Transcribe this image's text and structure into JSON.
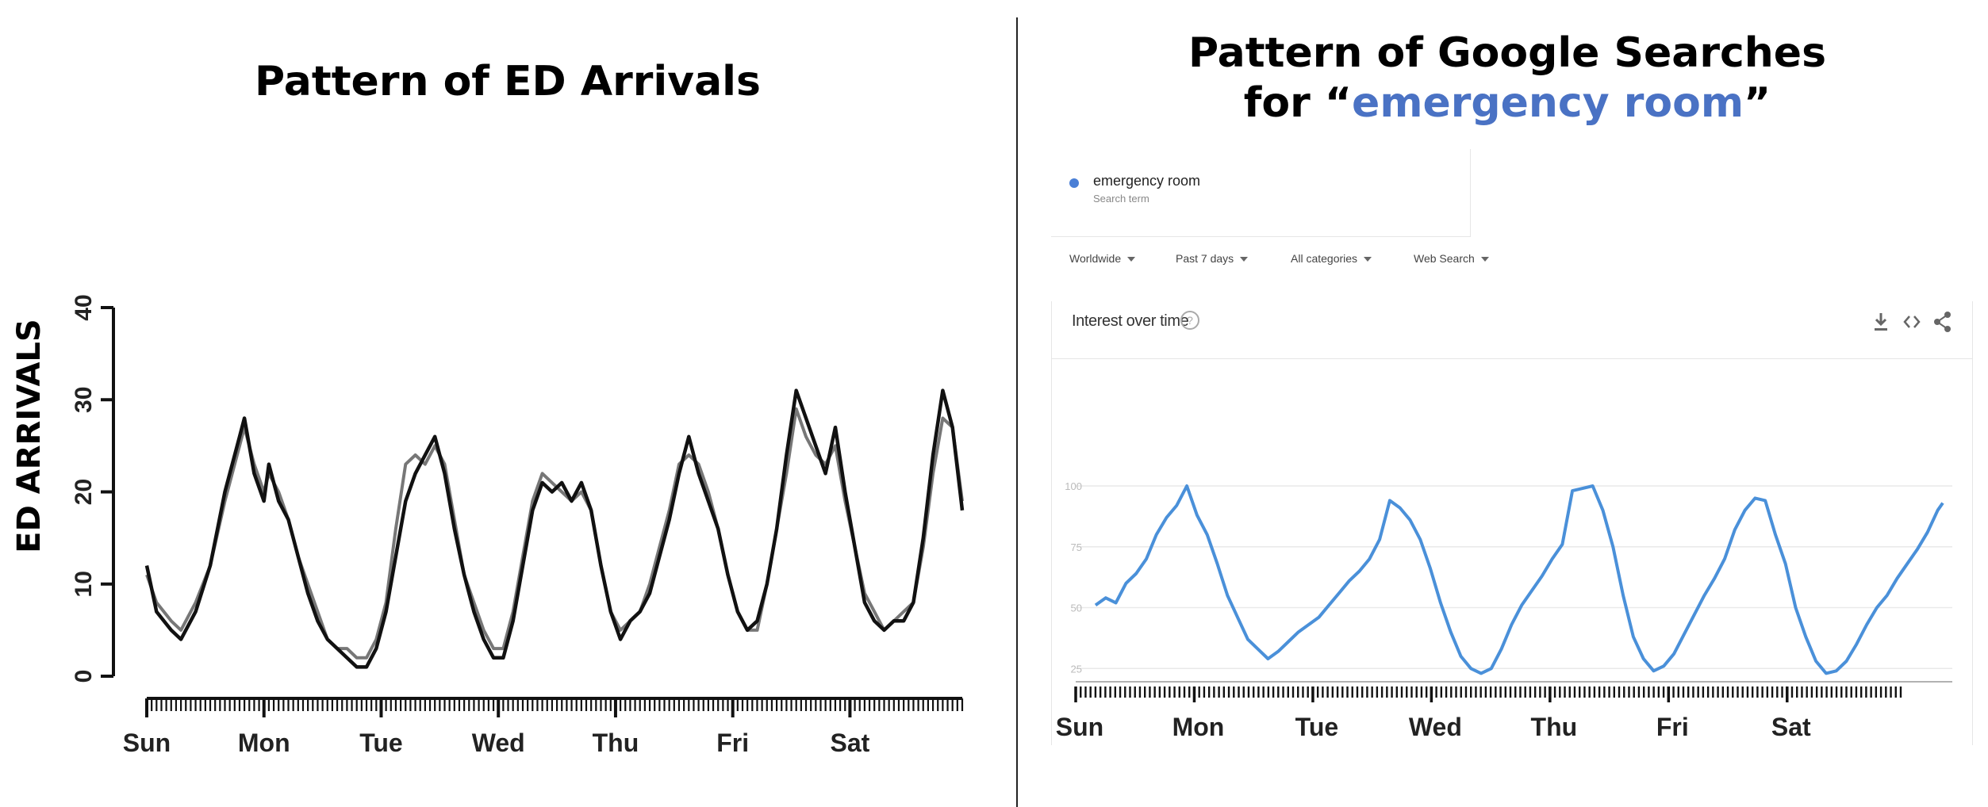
{
  "left_panel": {
    "title": "Pattern of ED Arrivals"
  },
  "right_panel": {
    "title_line1": "Pattern of Google Searches",
    "title_line2_prefix": "for “",
    "title_line2_highlight": "emergency room",
    "title_line2_suffix": "”",
    "highlight_color": "#4a72c4",
    "search_term": {
      "label": "emergency room",
      "sublabel": "Search term",
      "dot_color": "#4a7fd6"
    },
    "filters": [
      {
        "label": "Worldwide"
      },
      {
        "label": "Past 7 days"
      },
      {
        "label": "All categories"
      },
      {
        "label": "Web Search"
      }
    ],
    "interest_title": "Interest over time",
    "help_glyph": "?",
    "icons": [
      "download-icon",
      "embed-code-icon",
      "share-icon"
    ]
  },
  "chart_data": [
    {
      "type": "line",
      "title": "Pattern of ED Arrivals",
      "ylabel": "ED ARRIVALS",
      "xlabel": "",
      "ylim": [
        0,
        40
      ],
      "yticks": [
        0,
        10,
        20,
        30,
        40
      ],
      "x_tick_labels": [
        "Sun",
        "Mon",
        "Tue",
        "Wed",
        "Thu",
        "Fri",
        "Sat"
      ],
      "xlim": [
        0,
        167
      ],
      "grid": false,
      "series": [
        {
          "color": "#111111",
          "points": [
            [
              0,
              12
            ],
            [
              2,
              7
            ],
            [
              5,
              5
            ],
            [
              7,
              4
            ],
            [
              10,
              7
            ],
            [
              13,
              12
            ],
            [
              16,
              20
            ],
            [
              19,
              26
            ],
            [
              20,
              28
            ],
            [
              22,
              22
            ],
            [
              24,
              19
            ],
            [
              25,
              23
            ],
            [
              27,
              19
            ],
            [
              29,
              17
            ],
            [
              31,
              13
            ],
            [
              33,
              9
            ],
            [
              35,
              6
            ],
            [
              37,
              4
            ],
            [
              39,
              3
            ],
            [
              41,
              2
            ],
            [
              43,
              1
            ],
            [
              45,
              1
            ],
            [
              47,
              3
            ],
            [
              49,
              7
            ],
            [
              51,
              13
            ],
            [
              53,
              19
            ],
            [
              55,
              22
            ],
            [
              57,
              24
            ],
            [
              59,
              26
            ],
            [
              61,
              22
            ],
            [
              63,
              16
            ],
            [
              65,
              11
            ],
            [
              67,
              7
            ],
            [
              69,
              4
            ],
            [
              71,
              2
            ],
            [
              73,
              2
            ],
            [
              75,
              6
            ],
            [
              77,
              12
            ],
            [
              79,
              18
            ],
            [
              81,
              21
            ],
            [
              83,
              20
            ],
            [
              85,
              21
            ],
            [
              87,
              19
            ],
            [
              89,
              21
            ],
            [
              91,
              18
            ],
            [
              93,
              12
            ],
            [
              95,
              7
            ],
            [
              97,
              4
            ],
            [
              99,
              6
            ],
            [
              101,
              7
            ],
            [
              103,
              9
            ],
            [
              105,
              13
            ],
            [
              107,
              17
            ],
            [
              109,
              22
            ],
            [
              111,
              26
            ],
            [
              113,
              22
            ],
            [
              115,
              19
            ],
            [
              117,
              16
            ],
            [
              119,
              11
            ],
            [
              121,
              7
            ],
            [
              123,
              5
            ],
            [
              125,
              6
            ],
            [
              127,
              10
            ],
            [
              129,
              16
            ],
            [
              131,
              24
            ],
            [
              133,
              31
            ],
            [
              135,
              28
            ],
            [
              137,
              25
            ],
            [
              139,
              22
            ],
            [
              141,
              27
            ],
            [
              143,
              20
            ],
            [
              145,
              14
            ],
            [
              147,
              8
            ],
            [
              149,
              6
            ],
            [
              151,
              5
            ],
            [
              153,
              6
            ],
            [
              155,
              6
            ],
            [
              157,
              8
            ],
            [
              159,
              15
            ],
            [
              161,
              24
            ],
            [
              163,
              31
            ],
            [
              165,
              27
            ],
            [
              167,
              18
            ]
          ]
        },
        {
          "color": "#777777",
          "points": [
            [
              0,
              11
            ],
            [
              2,
              8
            ],
            [
              5,
              6
            ],
            [
              7,
              5
            ],
            [
              10,
              8
            ],
            [
              13,
              12
            ],
            [
              16,
              19
            ],
            [
              19,
              25
            ],
            [
              20,
              27
            ],
            [
              22,
              23
            ],
            [
              24,
              20
            ],
            [
              25,
              22
            ],
            [
              27,
              20
            ],
            [
              29,
              17
            ],
            [
              31,
              13
            ],
            [
              33,
              10
            ],
            [
              35,
              7
            ],
            [
              37,
              4
            ],
            [
              39,
              3
            ],
            [
              41,
              3
            ],
            [
              43,
              2
            ],
            [
              45,
              2
            ],
            [
              47,
              4
            ],
            [
              49,
              8
            ],
            [
              51,
              16
            ],
            [
              53,
              23
            ],
            [
              55,
              24
            ],
            [
              57,
              23
            ],
            [
              59,
              25
            ],
            [
              61,
              23
            ],
            [
              63,
              17
            ],
            [
              65,
              11
            ],
            [
              67,
              8
            ],
            [
              69,
              5
            ],
            [
              71,
              3
            ],
            [
              73,
              3
            ],
            [
              75,
              7
            ],
            [
              77,
              13
            ],
            [
              79,
              19
            ],
            [
              81,
              22
            ],
            [
              83,
              21
            ],
            [
              85,
              20
            ],
            [
              87,
              19
            ],
            [
              89,
              20
            ],
            [
              91,
              18
            ],
            [
              93,
              12
            ],
            [
              95,
              7
            ],
            [
              97,
              5
            ],
            [
              99,
              6
            ],
            [
              101,
              7
            ],
            [
              103,
              10
            ],
            [
              105,
              14
            ],
            [
              107,
              18
            ],
            [
              109,
              23
            ],
            [
              111,
              24
            ],
            [
              113,
              23
            ],
            [
              115,
              20
            ],
            [
              117,
              16
            ],
            [
              119,
              11
            ],
            [
              121,
              7
            ],
            [
              123,
              5
            ],
            [
              125,
              5
            ],
            [
              127,
              10
            ],
            [
              129,
              16
            ],
            [
              131,
              22
            ],
            [
              133,
              29
            ],
            [
              135,
              26
            ],
            [
              137,
              24
            ],
            [
              139,
              23
            ],
            [
              141,
              25
            ],
            [
              143,
              19
            ],
            [
              145,
              14
            ],
            [
              147,
              9
            ],
            [
              149,
              7
            ],
            [
              151,
              5
            ],
            [
              153,
              6
            ],
            [
              155,
              7
            ],
            [
              157,
              8
            ],
            [
              159,
              14
            ],
            [
              161,
              22
            ],
            [
              163,
              28
            ],
            [
              165,
              27
            ],
            [
              167,
              19
            ]
          ]
        }
      ]
    },
    {
      "type": "line",
      "title": "Interest over time",
      "xlabel": "",
      "ylabel": "",
      "ylim": [
        0,
        110
      ],
      "yticks": [
        25,
        50,
        75,
        100
      ],
      "x_tick_labels": [
        "Sun",
        "Mon",
        "Tue",
        "Wed",
        "Thu",
        "Fri",
        "Sat"
      ],
      "xlim": [
        0,
        167
      ],
      "grid": true,
      "series": [
        {
          "name": "emergency room",
          "color": "#4a90d9",
          "points": [
            [
              0,
              51
            ],
            [
              2,
              54
            ],
            [
              4,
              52
            ],
            [
              6,
              60
            ],
            [
              8,
              64
            ],
            [
              10,
              70
            ],
            [
              12,
              80
            ],
            [
              14,
              87
            ],
            [
              16,
              92
            ],
            [
              18,
              100
            ],
            [
              20,
              88
            ],
            [
              22,
              80
            ],
            [
              24,
              68
            ],
            [
              26,
              55
            ],
            [
              28,
              46
            ],
            [
              30,
              37
            ],
            [
              32,
              33
            ],
            [
              34,
              29
            ],
            [
              36,
              32
            ],
            [
              38,
              36
            ],
            [
              40,
              40
            ],
            [
              42,
              43
            ],
            [
              44,
              46
            ],
            [
              46,
              51
            ],
            [
              48,
              56
            ],
            [
              50,
              61
            ],
            [
              52,
              65
            ],
            [
              54,
              70
            ],
            [
              56,
              78
            ],
            [
              58,
              94
            ],
            [
              60,
              91
            ],
            [
              62,
              86
            ],
            [
              64,
              78
            ],
            [
              66,
              66
            ],
            [
              68,
              52
            ],
            [
              70,
              40
            ],
            [
              72,
              30
            ],
            [
              74,
              25
            ],
            [
              76,
              23
            ],
            [
              78,
              25
            ],
            [
              80,
              33
            ],
            [
              82,
              43
            ],
            [
              84,
              51
            ],
            [
              86,
              57
            ],
            [
              88,
              63
            ],
            [
              90,
              70
            ],
            [
              92,
              76
            ],
            [
              94,
              98
            ],
            [
              96,
              99
            ],
            [
              98,
              100
            ],
            [
              100,
              90
            ],
            [
              102,
              75
            ],
            [
              104,
              55
            ],
            [
              106,
              38
            ],
            [
              108,
              29
            ],
            [
              110,
              24
            ],
            [
              112,
              26
            ],
            [
              114,
              31
            ],
            [
              116,
              39
            ],
            [
              118,
              47
            ],
            [
              120,
              55
            ],
            [
              122,
              62
            ],
            [
              124,
              70
            ],
            [
              126,
              82
            ],
            [
              128,
              90
            ],
            [
              130,
              95
            ],
            [
              132,
              94
            ],
            [
              134,
              80
            ],
            [
              136,
              68
            ],
            [
              138,
              50
            ],
            [
              140,
              38
            ],
            [
              142,
              28
            ],
            [
              144,
              23
            ],
            [
              146,
              24
            ],
            [
              148,
              28
            ],
            [
              150,
              35
            ],
            [
              152,
              43
            ],
            [
              154,
              50
            ],
            [
              156,
              55
            ],
            [
              158,
              62
            ],
            [
              160,
              68
            ],
            [
              162,
              74
            ],
            [
              164,
              81
            ],
            [
              166,
              90
            ],
            [
              167,
              93
            ]
          ]
        }
      ]
    }
  ]
}
